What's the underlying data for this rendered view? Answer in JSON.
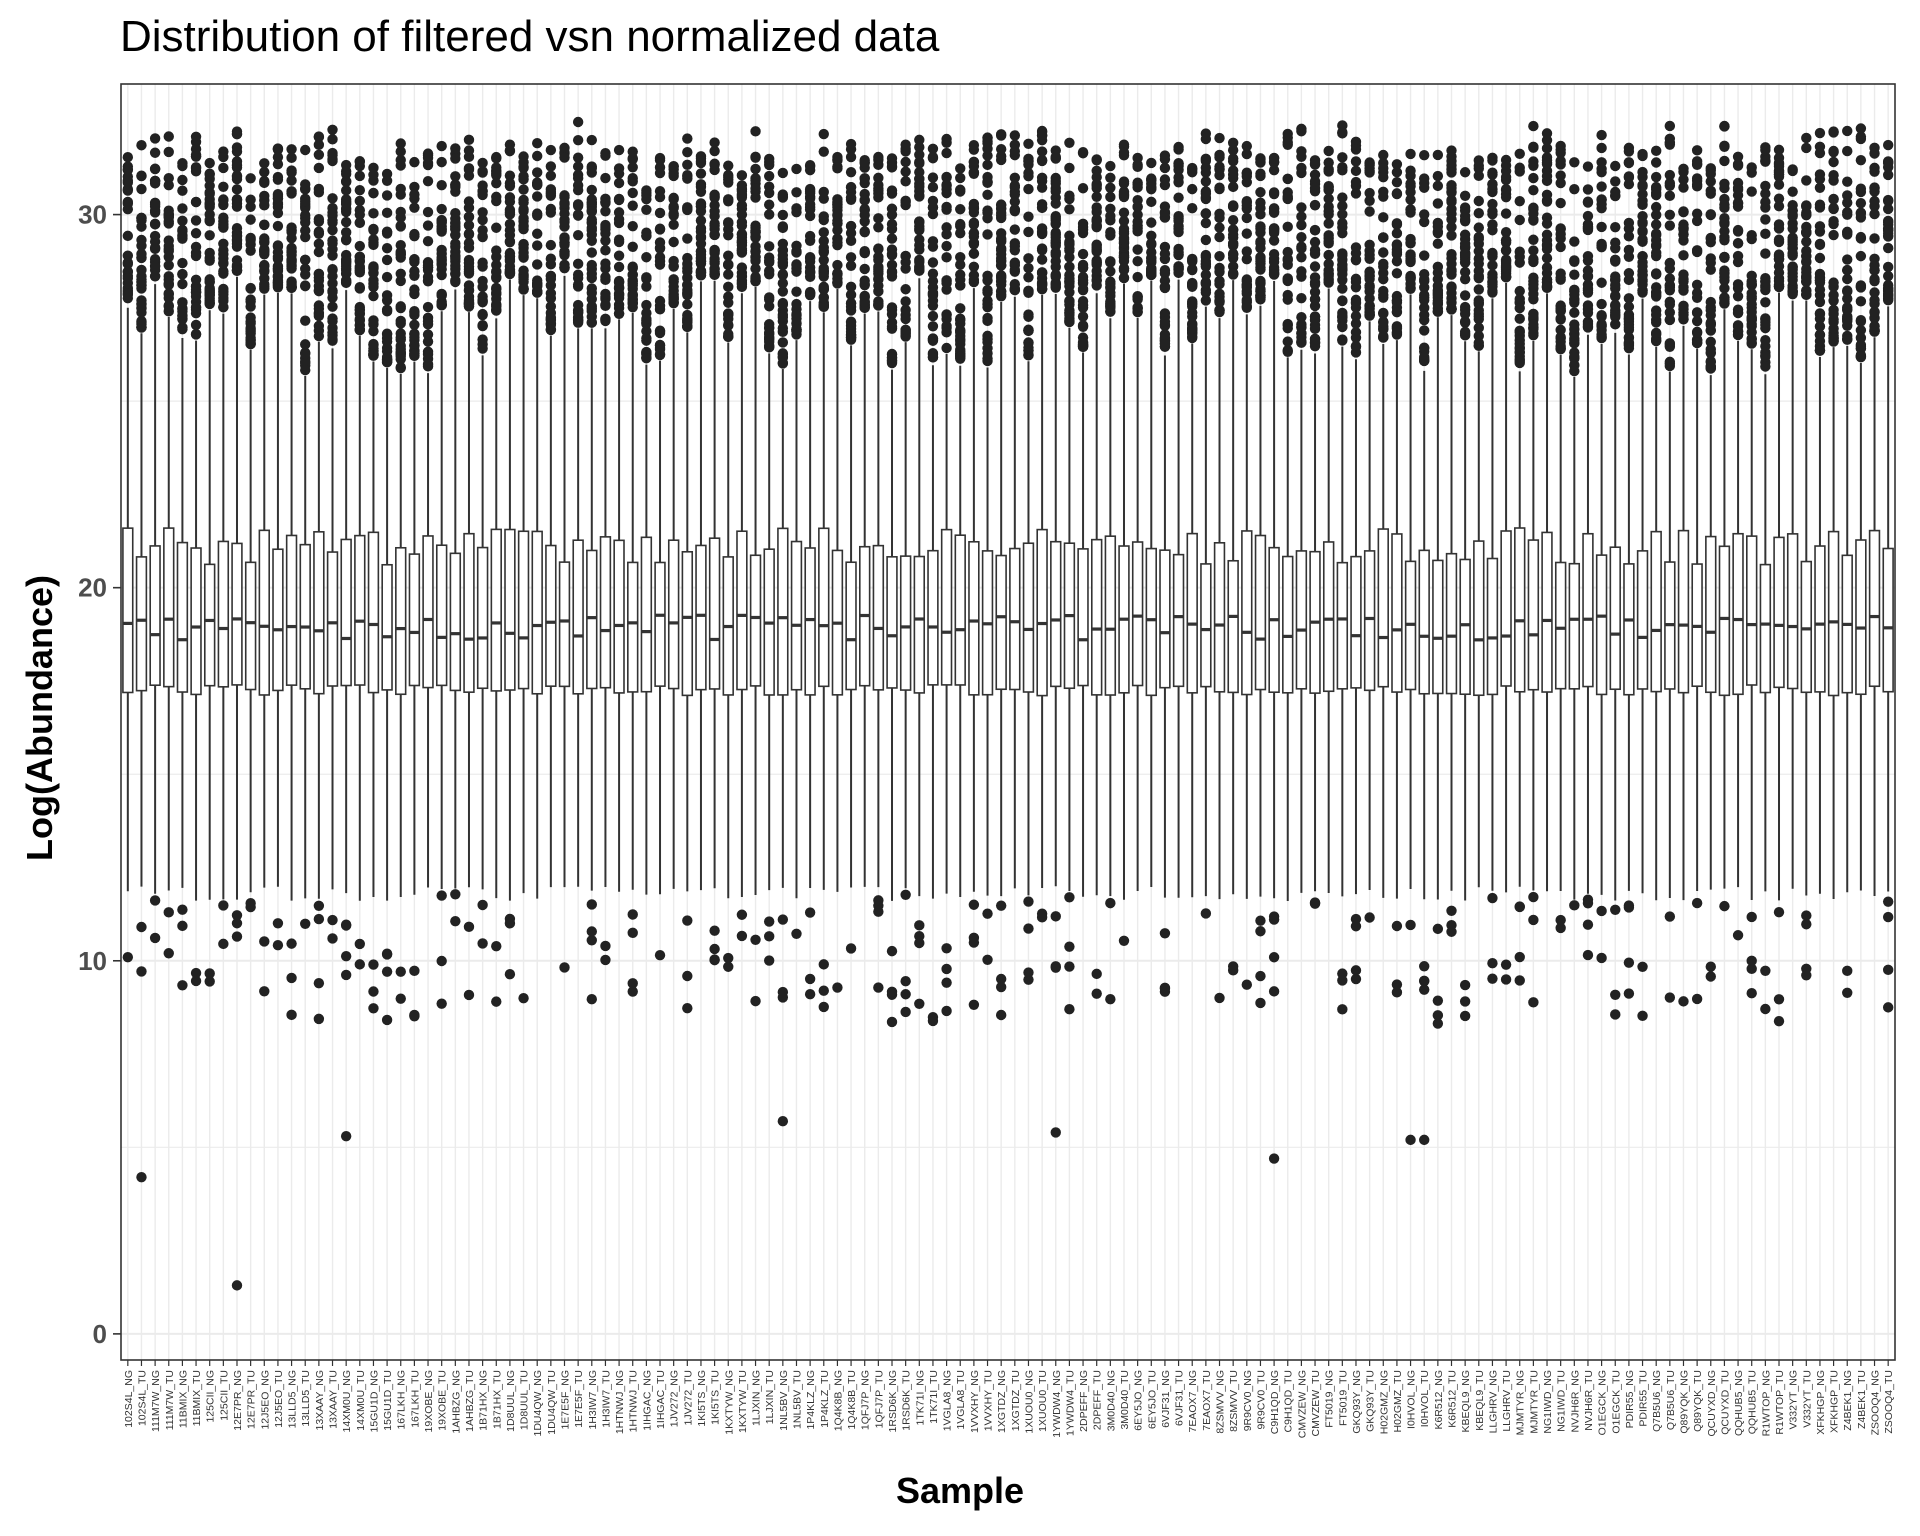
{
  "chart_data": {
    "type": "box",
    "title": "Distribution of filtered vsn normalized data",
    "xlabel": "Sample",
    "ylabel": "Log(Abundance)",
    "ylim": [
      -0.7,
      33.5
    ],
    "yticks": [
      0,
      10,
      20,
      30
    ],
    "grid": true,
    "legend": "none",
    "box_color": "#333333",
    "point_color": "#222222",
    "grid_color": "#ebebeb",
    "categories": [
      "102S4L_NG",
      "102S4L_TU",
      "111M7W_NG",
      "111M7W_TU",
      "11BMIX_NG",
      "11BMIX_TU",
      "125CII_NG",
      "125CII_TU",
      "12E7PR_NG",
      "12E7PR_TU",
      "12J5EO_NG",
      "12J5EO_TU",
      "13LLD5_NG",
      "13LLD5_TU",
      "13XAAY_NG",
      "13XAAY_TU",
      "14XM0U_NG",
      "14XM0U_TU",
      "15GU1D_NG",
      "15GU1D_TU",
      "167LKH_NG",
      "167LKH_TU",
      "19XOBE_NG",
      "19XOBE_TU",
      "1AHBZG_NG",
      "1AHBZG_TU",
      "1B71HX_NG",
      "1B71HX_TU",
      "1D8UUL_NG",
      "1D8UUL_TU",
      "1DU4QW_NG",
      "1DU4QW_TU",
      "1E7E5F_NG",
      "1E7E5F_TU",
      "1H3IW7_NG",
      "1H3IW7_TU",
      "1HTNWJ_NG",
      "1HTNWJ_TU",
      "1IHGAC_NG",
      "1IHGAC_TU",
      "1JV272_NG",
      "1JV272_TU",
      "1KI5TS_NG",
      "1KI5TS_TU",
      "1KXTYW_NG",
      "1KXTYW_TU",
      "1LJXIN_NG",
      "1LJXIN_TU",
      "1NL5BV_NG",
      "1NL5BV_TU",
      "1P4KLZ_NG",
      "1P4KLZ_TU",
      "1Q4K8B_NG",
      "1Q4K8B_TU",
      "1QFJ7P_NG",
      "1QFJ7P_TU",
      "1RSD6K_NG",
      "1RSD6K_TU",
      "1TK71I_NG",
      "1TK71I_TU",
      "1VGLA8_NG",
      "1VGLA8_TU",
      "1VVXHY_NG",
      "1VVXHY_TU",
      "1XGTDZ_NG",
      "1XGTDZ_TU",
      "1XUOU0_NG",
      "1XUOU0_TU",
      "1YWDW4_NG",
      "1YWDW4_TU",
      "2DPEFF_NG",
      "2DPEFF_TU",
      "3M0D40_NG",
      "3M0D40_TU",
      "6EY5JO_NG",
      "6EY5JO_TU",
      "6VJF31_NG",
      "6VJF31_TU",
      "7EAOX7_NG",
      "7EAOX7_TU",
      "8ZSMVV_NG",
      "8ZSMVV_TU",
      "9R9CV0_NG",
      "9R9CV0_TU",
      "C9H1QD_NG",
      "C9H1QD_TU",
      "CMVZEW_NG",
      "CMVZEW_TU",
      "FT5019_NG",
      "FT5019_TU",
      "GKQ93Y_NG",
      "GKQ93Y_TU",
      "H02GMZ_NG",
      "H02GMZ_TU",
      "I0HVOL_NG",
      "I0HVOL_TU",
      "K6R512_NG",
      "K6R512_TU",
      "KBEQL9_NG",
      "KBEQL9_TU",
      "LLGHRV_NG",
      "LLGHRV_TU",
      "MJMTYR_NG",
      "MJMTYR_TU",
      "NG1IWD_NG",
      "NG1IWD_TU",
      "NVJH6R_NG",
      "NVJH6R_TU",
      "O1EGCK_NG",
      "O1EGCK_TU",
      "PDIR55_NG",
      "PDIR55_TU",
      "Q7B5U6_NG",
      "Q7B5U6_TU",
      "Q89YQK_NG",
      "Q89YQK_TU",
      "QCUYXD_NG",
      "QCUYXD_TU",
      "QQHUB5_NG",
      "QQHUB5_TU",
      "R1WTOP_NG",
      "R1WTOP_TU",
      "V332YT_NG",
      "V332YT_TU",
      "XFKHGP_NG",
      "XFKHGP_TU",
      "Z4BEK1_NG",
      "Z4BEK1_TU",
      "ZSOOQ4_NG",
      "ZSOOQ4_TU"
    ],
    "box_summary_approx": {
      "whisker_low": [
        11.6,
        12.0
      ],
      "q1": [
        17.1,
        17.4
      ],
      "median": [
        18.6,
        19.3
      ],
      "q3": [
        20.6,
        21.6
      ],
      "whisker_high": [
        25.6,
        28.4
      ],
      "upper_outliers_max": [
        31.4,
        32.5
      ]
    },
    "notable_low_outliers": [
      {
        "category": "102S4L_TU",
        "value": 4.2
      },
      {
        "category": "12E7PR_NG",
        "value": 1.3
      },
      {
        "category": "14XM0U_NG",
        "value": 5.3
      },
      {
        "category": "1NL5BV_NG",
        "value": 5.7
      },
      {
        "category": "1YWDW4_NG",
        "value": 5.4
      },
      {
        "category": "C9H1QD_NG",
        "value": 4.7
      },
      {
        "category": "I0HVOL_NG",
        "value": 5.2
      },
      {
        "category": "I0HVOL_TU",
        "value": 5.2
      }
    ]
  }
}
